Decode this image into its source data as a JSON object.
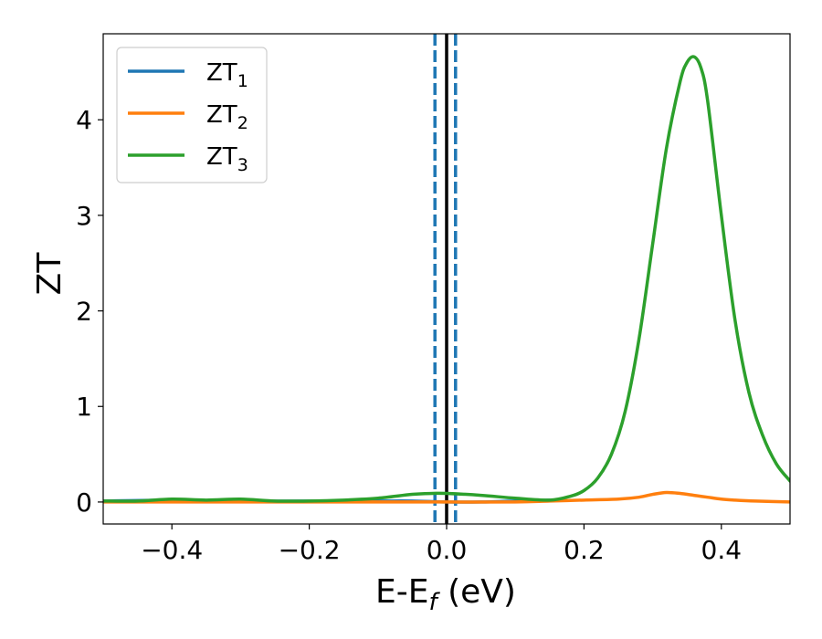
{
  "chart_data": {
    "type": "line",
    "xlabel": "E-E",
    "xlabel_sub": "f",
    "xlabel_unit": " (eV)",
    "ylabel": "ZT",
    "xlim": [
      -0.5,
      0.5
    ],
    "ylim": [
      -0.23,
      4.9
    ],
    "xticks": [
      -0.4,
      -0.2,
      0.0,
      0.2,
      0.4
    ],
    "xtick_labels": [
      "−0.4",
      "−0.2",
      "0.0",
      "0.2",
      "0.4"
    ],
    "yticks": [
      0,
      1,
      2,
      3,
      4
    ],
    "ytick_labels": [
      "0",
      "1",
      "2",
      "3",
      "4"
    ],
    "grid": false,
    "legend_position": "top-left",
    "vlines": [
      {
        "x": 0.0,
        "style": "solid",
        "color": "#000000"
      },
      {
        "x": -0.017,
        "style": "dashed",
        "color": "#1f77b4"
      },
      {
        "x": 0.013,
        "style": "dashed",
        "color": "#1f77b4"
      }
    ],
    "series": [
      {
        "name": "ZT",
        "name_sub": "1",
        "color": "#1f77b4",
        "x": [
          -0.5,
          -0.4,
          -0.3,
          -0.2,
          -0.1,
          -0.05,
          0.0,
          0.05,
          0.1,
          0.15
        ],
        "y": [
          0.01,
          0.02,
          0.01,
          0.01,
          0.01,
          0.01,
          0.0,
          0.0,
          0.01,
          0.02
        ]
      },
      {
        "name": "ZT",
        "name_sub": "2",
        "color": "#ff7f0e",
        "x": [
          -0.5,
          -0.4,
          -0.3,
          -0.2,
          -0.1,
          0.0,
          0.1,
          0.15,
          0.2,
          0.25,
          0.28,
          0.3,
          0.32,
          0.34,
          0.36,
          0.38,
          0.4,
          0.42,
          0.45,
          0.5
        ],
        "y": [
          0.0,
          0.0,
          0.0,
          0.0,
          0.0,
          0.0,
          0.0,
          0.01,
          0.02,
          0.03,
          0.05,
          0.08,
          0.1,
          0.09,
          0.07,
          0.05,
          0.03,
          0.02,
          0.01,
          0.0
        ]
      },
      {
        "name": "ZT",
        "name_sub": "3",
        "color": "#2ca02c",
        "x": [
          -0.5,
          -0.45,
          -0.4,
          -0.35,
          -0.3,
          -0.25,
          -0.2,
          -0.15,
          -0.1,
          -0.05,
          -0.02,
          0.0,
          0.05,
          0.1,
          0.15,
          0.18,
          0.2,
          0.22,
          0.24,
          0.26,
          0.28,
          0.3,
          0.32,
          0.34,
          0.35,
          0.36,
          0.37,
          0.38,
          0.4,
          0.42,
          0.44,
          0.46,
          0.48,
          0.5
        ],
        "y": [
          0.01,
          0.01,
          0.03,
          0.02,
          0.03,
          0.01,
          0.01,
          0.02,
          0.04,
          0.08,
          0.09,
          0.09,
          0.07,
          0.04,
          0.02,
          0.06,
          0.12,
          0.25,
          0.5,
          0.95,
          1.7,
          2.7,
          3.7,
          4.4,
          4.6,
          4.66,
          4.55,
          4.2,
          3.0,
          1.9,
          1.15,
          0.7,
          0.4,
          0.22
        ]
      }
    ]
  }
}
